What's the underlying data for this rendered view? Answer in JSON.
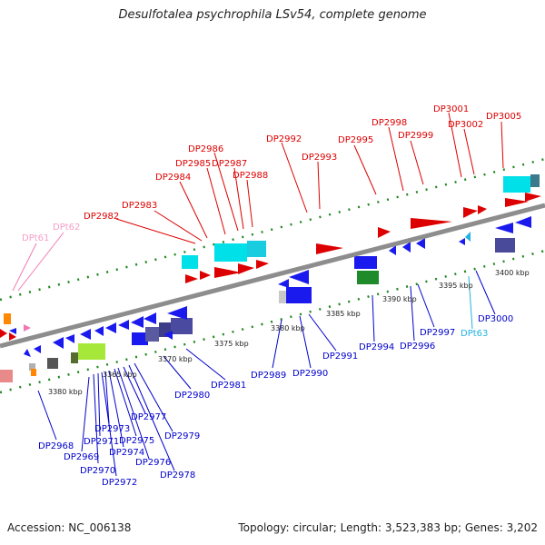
{
  "title": "Desulfotalea psychrophila LSv54, complete genome",
  "footer": {
    "accession": "Accession: NC_006138",
    "topology": "Topology: circular; Length: 3,523,383 bp; Genes: 3,202"
  },
  "colors": {
    "forward_label": "#dd0000",
    "reverse_label": "#0000cc",
    "trna_forward": "#f07ab0",
    "trna_reverse": "#22b2e0",
    "backbone": "#888888",
    "ruler": "#228822"
  },
  "scale_labels": [
    "3365 kbp",
    "3370 kbp",
    "3375 kbp",
    "3380 kbp",
    "3380 kbp",
    "3385 kbp",
    "3390 kbp",
    "3395 kbp",
    "3400 kbp"
  ],
  "forward_genes": [
    "DP2982",
    "DP2983",
    "DP2984",
    "DP2985",
    "DP2986",
    "DP2987",
    "DP2988",
    "DP2992",
    "DP2993",
    "DP2995",
    "DP2998",
    "DP2999",
    "DP3001",
    "DP3002",
    "DP3005"
  ],
  "forward_trna": [
    "DPt61",
    "DPt62"
  ],
  "reverse_genes": [
    "DP2968",
    "DP2969",
    "DP2970",
    "DP2971",
    "DP2972",
    "DP2973",
    "DP2974",
    "DP2975",
    "DP2976",
    "DP2977",
    "DP2978",
    "DP2979",
    "DP2980",
    "DP2981",
    "DP2989",
    "DP2990",
    "DP2991",
    "DP2994",
    "DP2996",
    "DP2997",
    "DP3000"
  ],
  "reverse_trna": [
    "DPt63"
  ]
}
